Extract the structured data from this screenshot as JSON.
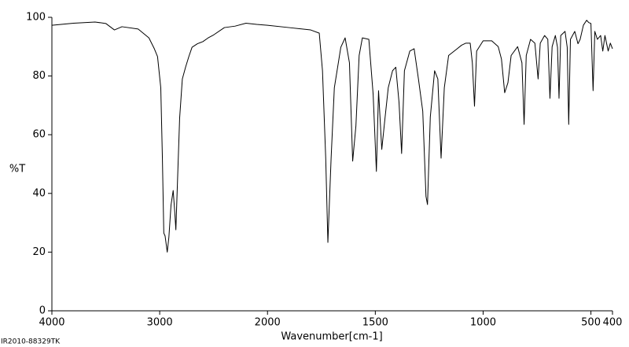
{
  "chart_data": {
    "type": "line",
    "ylabel": "%T",
    "xlabel": "Wavenumber[cm-1]",
    "footnote": "IR2010-88329TK",
    "xlim": [
      4000,
      400
    ],
    "ylim": [
      0,
      100
    ],
    "xticks": [
      4000,
      3000,
      2000,
      1500,
      1000,
      500,
      400
    ],
    "yticks": [
      0,
      20,
      40,
      60,
      80,
      100
    ],
    "x_scale_break": {
      "value": 2000,
      "zoom": 2
    },
    "color": "#000000",
    "x": [
      4000,
      3800,
      3600,
      3500,
      3420,
      3350,
      3200,
      3100,
      3050,
      3020,
      2990,
      2975,
      2962,
      2950,
      2930,
      2915,
      2895,
      2875,
      2860,
      2850,
      2835,
      2815,
      2790,
      2760,
      2730,
      2700,
      2650,
      2600,
      2550,
      2500,
      2400,
      2300,
      2200,
      2100,
      2000,
      1900,
      1800,
      1760,
      1745,
      1730,
      1720,
      1705,
      1690,
      1660,
      1640,
      1620,
      1605,
      1590,
      1575,
      1560,
      1530,
      1510,
      1495,
      1485,
      1470,
      1455,
      1440,
      1420,
      1405,
      1390,
      1378,
      1365,
      1340,
      1320,
      1300,
      1280,
      1265,
      1258,
      1245,
      1225,
      1210,
      1195,
      1180,
      1160,
      1120,
      1100,
      1080,
      1060,
      1050,
      1040,
      1030,
      1000,
      960,
      930,
      915,
      900,
      885,
      870,
      840,
      820,
      810,
      800,
      780,
      760,
      745,
      735,
      715,
      700,
      690,
      680,
      665,
      655,
      648,
      640,
      620,
      610,
      603,
      595,
      575,
      560,
      550,
      535,
      520,
      510,
      500,
      490,
      482,
      470,
      455,
      445,
      435,
      420,
      410,
      400
    ],
    "values": [
      97.3,
      98,
      98.4,
      97.9,
      95.7,
      96.8,
      96,
      93,
      89.3,
      86.6,
      76,
      52,
      26.5,
      25.5,
      20,
      25,
      36,
      41,
      33.5,
      27.6,
      44,
      65.7,
      79,
      83,
      86.6,
      89.8,
      91,
      91.7,
      93,
      94,
      96.5,
      97,
      98,
      97.6,
      97.3,
      96.5,
      95.7,
      94.6,
      81.8,
      52,
      23.3,
      52,
      76,
      89.8,
      93,
      84.5,
      51,
      63,
      87,
      93,
      92.5,
      73.7,
      47.5,
      75,
      55,
      65.7,
      76,
      81.8,
      83,
      71,
      53.6,
      81.8,
      88.5,
      89.3,
      79,
      68,
      39,
      36.2,
      66,
      81.8,
      79,
      52,
      76,
      87,
      89.3,
      90.5,
      91.2,
      91.2,
      84.5,
      69.7,
      88.5,
      92,
      92,
      90,
      85.8,
      74.3,
      77.7,
      87,
      90,
      84.5,
      63.5,
      87,
      92.5,
      91.2,
      79,
      91.2,
      93.8,
      92.5,
      72.4,
      90,
      93.8,
      89.8,
      72.4,
      93.8,
      95.2,
      89.8,
      63.5,
      92.5,
      95.2,
      91,
      92.5,
      97.3,
      99,
      98.2,
      97.9,
      75,
      95.2,
      92.5,
      93.8,
      88.5,
      93.8,
      88.5,
      91.2,
      89.3
    ]
  }
}
